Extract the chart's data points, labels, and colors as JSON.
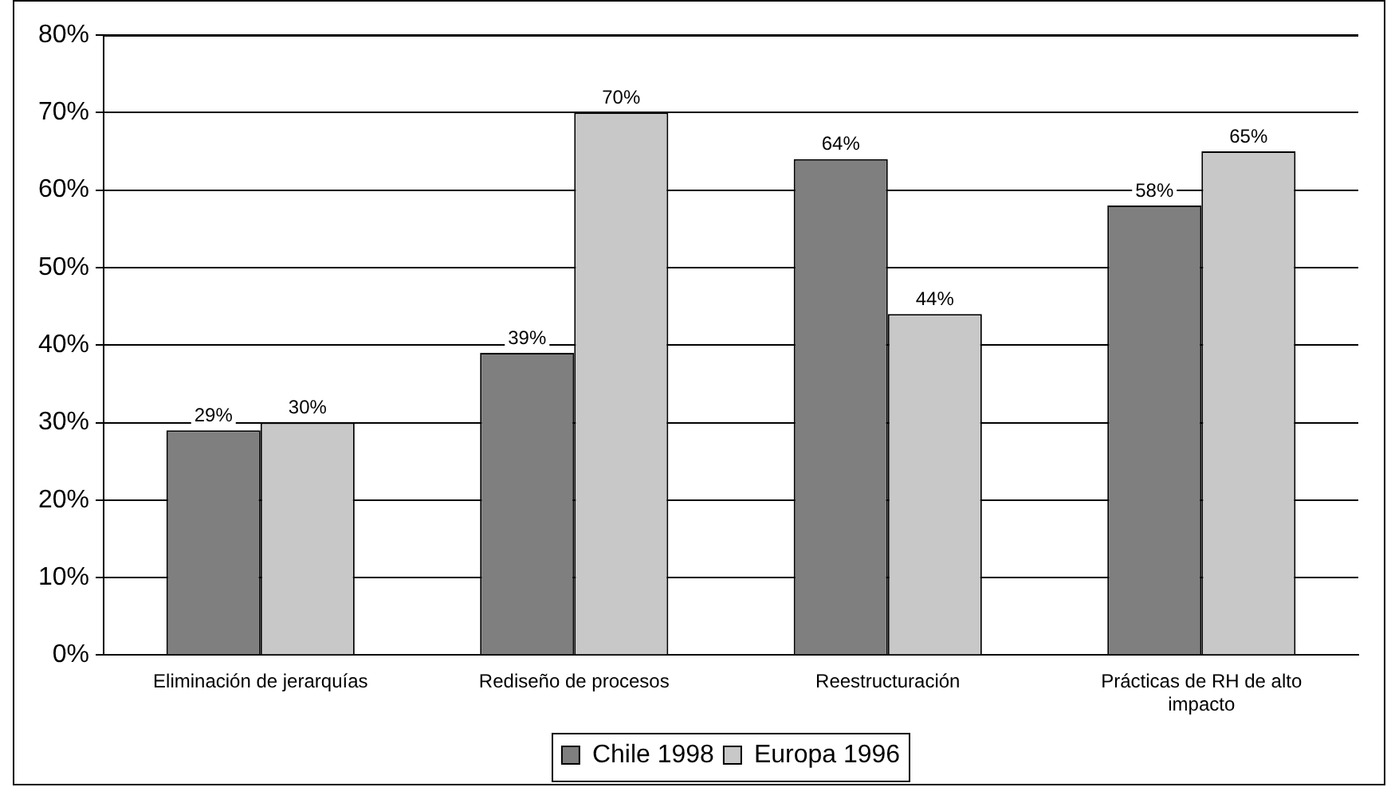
{
  "chart_data": {
    "type": "bar",
    "categories": [
      "Eliminación de jerarquías",
      "Rediseño de procesos",
      "Reestructuración",
      "Prácticas de RH de alto impacto"
    ],
    "series": [
      {
        "name": "Chile 1998",
        "color": "#7f7f7f",
        "values": [
          29,
          39,
          64,
          58
        ],
        "value_labels": [
          "29%",
          "39%",
          "64%",
          "58%"
        ]
      },
      {
        "name": "Europa 1996",
        "color": "#c8c8c8",
        "values": [
          30,
          70,
          44,
          65
        ],
        "value_labels": [
          "30%",
          "70%",
          "44%",
          "65%"
        ]
      }
    ],
    "ylim": [
      0,
      80
    ],
    "yticks": [
      {
        "value": 0,
        "label": "0%"
      },
      {
        "value": 10,
        "label": "10%"
      },
      {
        "value": 20,
        "label": "20%"
      },
      {
        "value": 30,
        "label": "30%"
      },
      {
        "value": 40,
        "label": "40%"
      },
      {
        "value": 50,
        "label": "50%"
      },
      {
        "value": 60,
        "label": "60%"
      },
      {
        "value": 70,
        "label": "70%"
      },
      {
        "value": 80,
        "label": "80%"
      }
    ],
    "grid": "y",
    "legend": "bottom"
  }
}
